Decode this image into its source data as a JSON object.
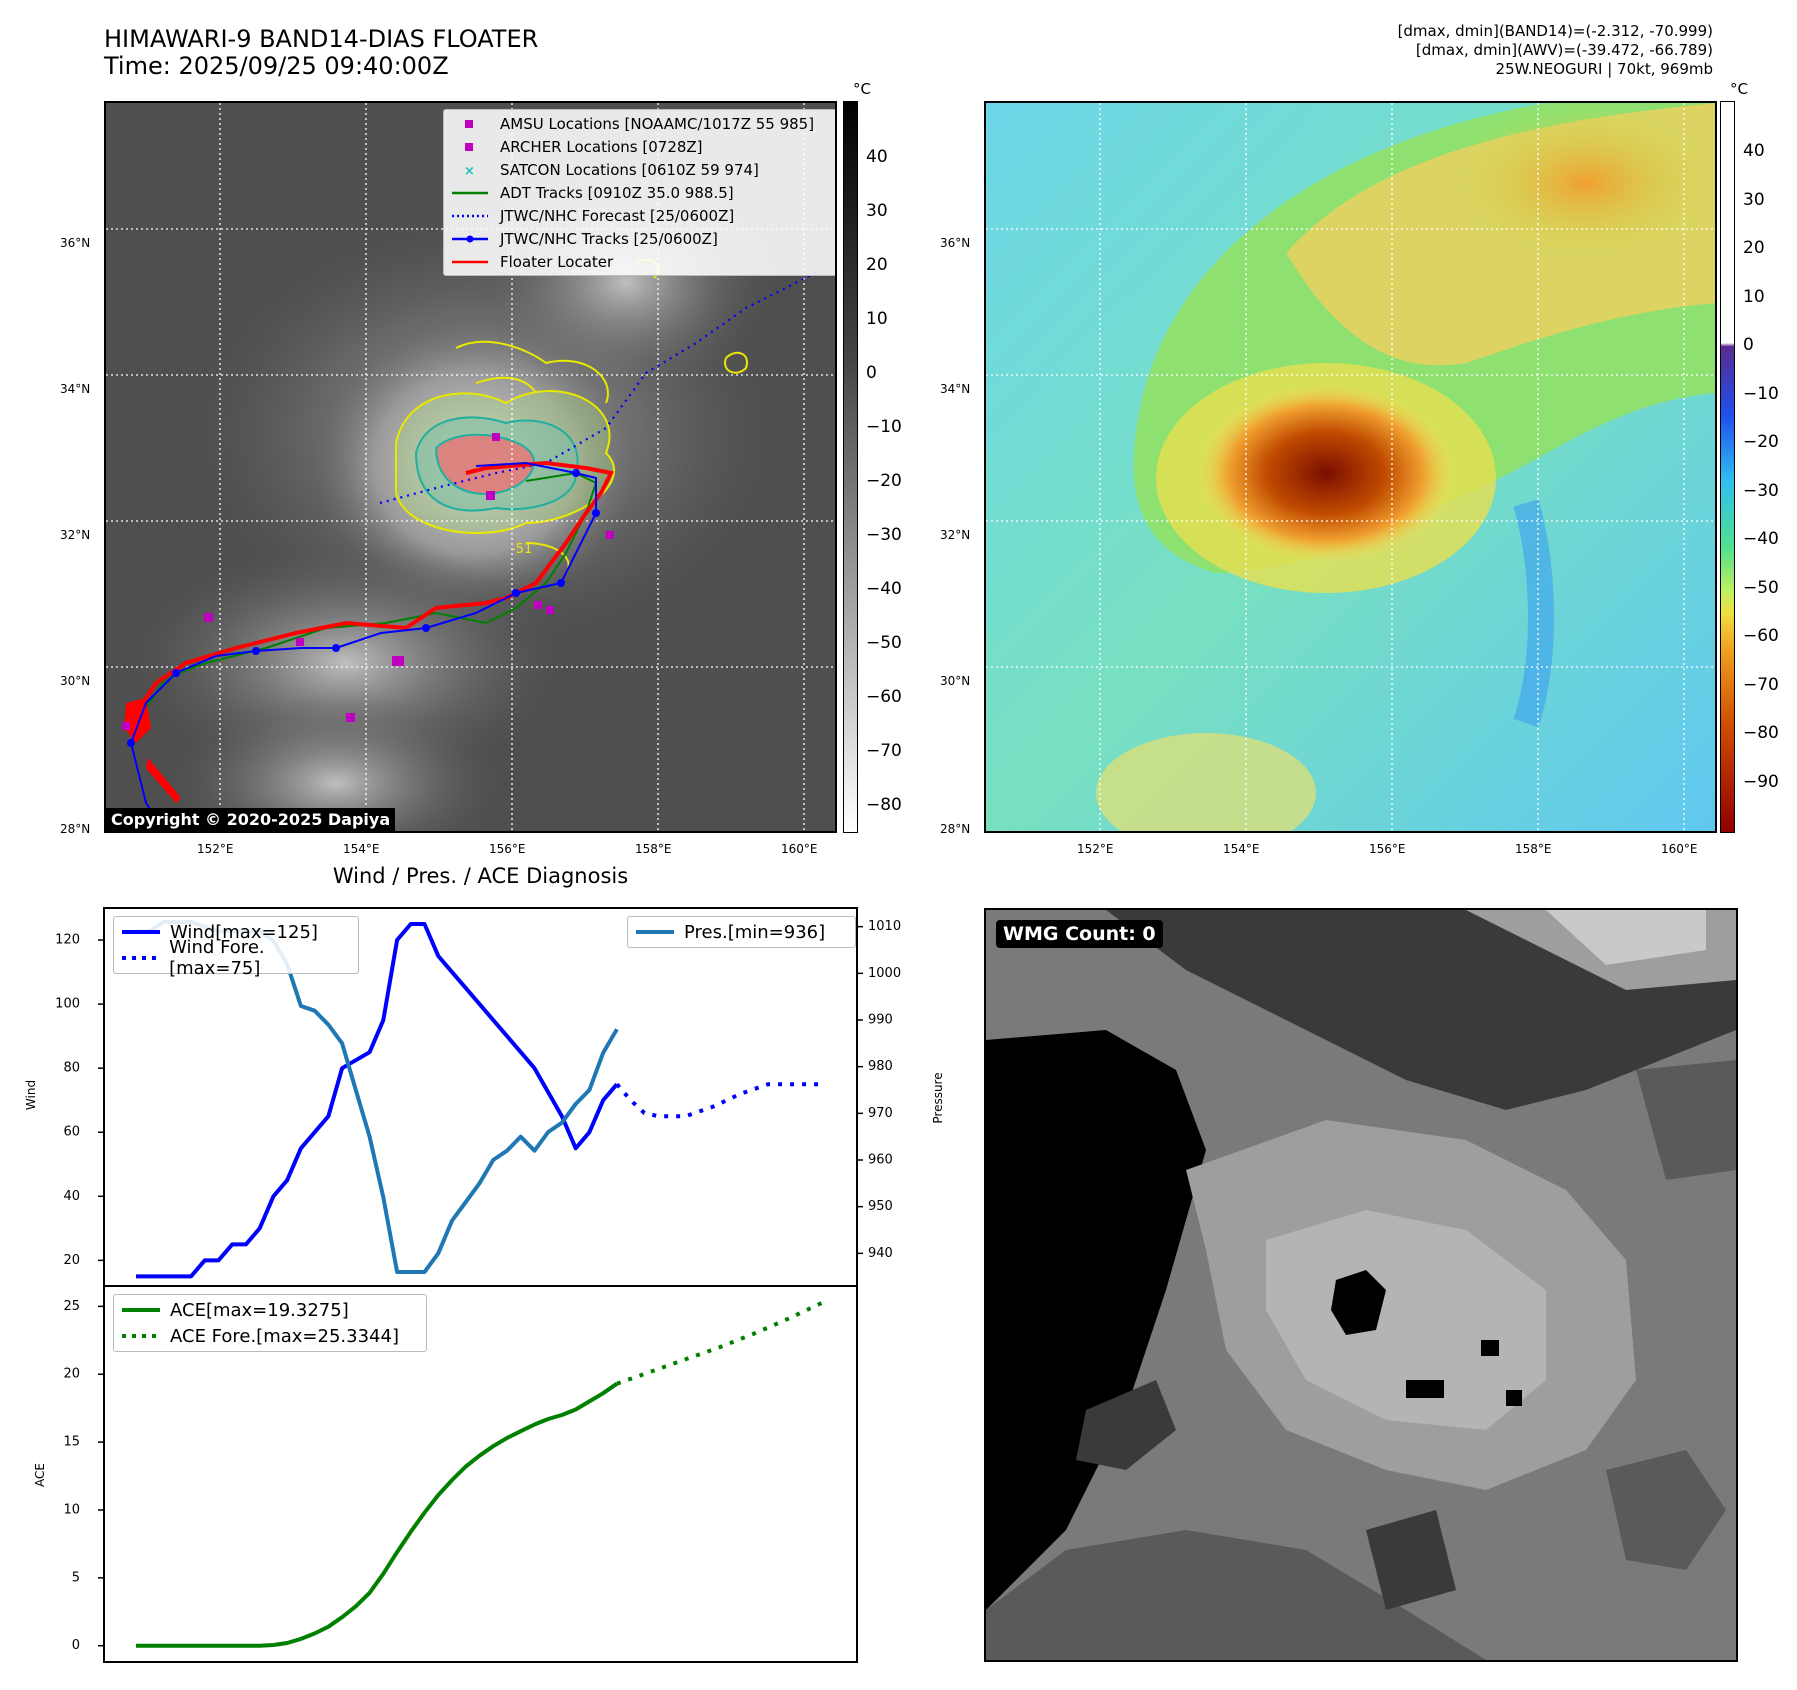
{
  "header": {
    "title_line1": "HIMAWARI-9 BAND14-DIAS FLOATER",
    "title_line2": "Time: 2025/09/25 09:40:00Z",
    "stats_line1": "[dmax, dmin](BAND14)=(-2.312, -70.999)",
    "stats_line2": "[dmax, dmin](AWV)=(-39.472, -66.789)",
    "stats_line3": "25W.NEOGURI | 70kt, 969mb"
  },
  "map": {
    "lat_labels": [
      "36°N",
      "34°N",
      "32°N",
      "30°N",
      "28°N"
    ],
    "lon_labels": [
      "152°E",
      "154°E",
      "156°E",
      "158°E",
      "160°E"
    ],
    "copyright": "Copyright © 2020-2025 Dapiya",
    "contour_label": "-51",
    "legend": [
      {
        "label": "AMSU Locations [NOAAMC/1017Z 55 985]",
        "color": "#c000c0",
        "marker": "square"
      },
      {
        "label": "ARCHER Locations [0728Z]",
        "color": "#c000c0",
        "marker": "square"
      },
      {
        "label": "SATCON Locations [0610Z 59 974]",
        "color": "#20c0c0",
        "marker": "x"
      },
      {
        "label": "ADT Tracks [0910Z 35.0 988.5]",
        "color": "#008000",
        "marker": "line"
      },
      {
        "label": "JTWC/NHC Forecast [25/0600Z]",
        "color": "#0000ff",
        "marker": "dotted"
      },
      {
        "label": "JTWC/NHC Tracks [25/0600Z]",
        "color": "#0000ff",
        "marker": "line-dot"
      },
      {
        "label": "Floater Locater",
        "color": "#ff0000",
        "marker": "line"
      }
    ]
  },
  "colorbar_ir": {
    "unit": "°C",
    "ticks": [
      "40",
      "30",
      "20",
      "10",
      "0",
      "−10",
      "−20",
      "−30",
      "−40",
      "−50",
      "−60",
      "−70",
      "−80"
    ]
  },
  "colorbar_wv": {
    "unit": "°C",
    "ticks": [
      "40",
      "30",
      "20",
      "10",
      "0",
      "−10",
      "−20",
      "−30",
      "−40",
      "−50",
      "−60",
      "−70",
      "−80",
      "−90"
    ]
  },
  "diagnosis": {
    "title": "Wind / Pres. / ACE Diagnosis",
    "ylabel_wind": "Wind",
    "ylabel_pressure": "Pressure",
    "ylabel_ace": "ACE",
    "wind_ticks": [
      "120",
      "100",
      "80",
      "60",
      "40",
      "20"
    ],
    "pressure_ticks": [
      "1010",
      "1000",
      "990",
      "980",
      "970",
      "960",
      "950",
      "940"
    ],
    "ace_ticks": [
      "25",
      "20",
      "15",
      "10",
      "5",
      "0"
    ],
    "legend_wind": "Wind[max=125]",
    "legend_wind_fore": "Wind Fore.[max=75]",
    "legend_pres": "Pres.[min=936]",
    "legend_ace": "ACE[max=19.3275]",
    "legend_ace_fore": "ACE Fore.[max=25.3344]"
  },
  "microwave": {
    "wmg_count": "WMG Count: 0"
  },
  "chart_data": [
    {
      "type": "line",
      "title": "Wind / Pres. / ACE Diagnosis",
      "ylabel": "Wind",
      "ylim": [
        12,
        130
      ],
      "x": [
        0,
        1,
        2,
        3,
        4,
        5,
        6,
        7,
        8,
        9,
        10,
        11,
        12,
        13,
        14,
        15,
        16,
        17,
        18,
        19,
        20,
        21,
        22,
        23,
        24,
        25,
        26,
        27,
        28,
        29,
        30,
        31,
        32,
        33,
        34,
        35,
        36,
        37,
        38,
        39,
        40,
        41,
        42,
        43,
        44,
        45,
        46,
        47,
        48,
        49,
        50,
        51,
        52,
        53,
        54,
        55,
        56,
        57,
        58,
        59,
        60,
        61,
        62,
        63,
        64,
        65,
        66,
        67,
        68,
        69,
        70,
        71,
        72,
        73,
        74,
        75,
        76,
        77,
        78,
        79,
        80,
        81,
        82,
        83,
        84,
        85,
        86,
        87,
        88,
        89,
        90,
        91,
        92,
        93,
        94,
        95,
        96,
        97,
        98,
        99,
        100
      ],
      "series": [
        {
          "name": "Wind[max=125]",
          "color": "#0000ff",
          "style": "solid",
          "x": [
            0,
            4,
            8,
            10,
            12,
            14,
            16,
            18,
            20,
            22,
            24,
            28,
            30,
            34,
            36,
            38,
            40,
            42,
            44,
            46,
            48,
            50,
            54,
            58,
            62,
            64,
            66,
            68,
            70
          ],
          "values": [
            15,
            15,
            15,
            20,
            20,
            25,
            25,
            30,
            40,
            45,
            55,
            65,
            80,
            85,
            95,
            120,
            125,
            125,
            115,
            110,
            105,
            100,
            90,
            80,
            65,
            55,
            60,
            70,
            75
          ]
        },
        {
          "name": "Wind Fore.[max=75]",
          "color": "#0000ff",
          "style": "dotted",
          "x": [
            70,
            72,
            74,
            76,
            78,
            80,
            84,
            88,
            92,
            96,
            100
          ],
          "values": [
            75,
            70,
            66,
            65,
            65,
            65,
            68,
            72,
            75,
            75,
            75
          ]
        },
        {
          "name": "Pres.[min=936]",
          "color": "#1f77b4",
          "style": "solid",
          "axis": "right",
          "x": [
            0,
            2,
            4,
            6,
            8,
            10,
            12,
            14,
            16,
            18,
            20,
            22,
            24,
            26,
            28,
            30,
            32,
            34,
            36,
            38,
            40,
            42,
            44,
            46,
            48,
            50,
            52,
            54,
            56,
            58,
            60,
            62,
            64,
            66,
            68,
            70
          ],
          "values": [
            1009,
            1009,
            1011,
            1011,
            1011,
            1010,
            1009,
            1009,
            1009,
            1009,
            1007,
            1002,
            993,
            992,
            989,
            985,
            975,
            965,
            952,
            936,
            936,
            936,
            940,
            947,
            951,
            955,
            960,
            962,
            965,
            962,
            966,
            968,
            972,
            975,
            983,
            988
          ]
        }
      ],
      "y2label": "Pressure",
      "y2lim": [
        933,
        1014
      ]
    },
    {
      "type": "line",
      "ylabel": "ACE",
      "ylim": [
        -1.2,
        26.5
      ],
      "series": [
        {
          "name": "ACE[max=19.3275]",
          "color": "#008000",
          "style": "solid",
          "x": [
            0,
            10,
            18,
            20,
            22,
            24,
            26,
            28,
            30,
            32,
            34,
            36,
            38,
            40,
            42,
            44,
            46,
            48,
            50,
            52,
            54,
            56,
            58,
            60,
            62,
            64,
            66,
            68,
            70
          ],
          "values": [
            0,
            0,
            0,
            0.05,
            0.2,
            0.5,
            0.9,
            1.4,
            2.1,
            2.9,
            3.9,
            5.3,
            6.9,
            8.4,
            9.8,
            11.1,
            12.2,
            13.2,
            14,
            14.7,
            15.3,
            15.8,
            16.3,
            16.7,
            17,
            17.4,
            18,
            18.6,
            19.3
          ]
        },
        {
          "name": "ACE Fore.[max=25.3344]",
          "color": "#008000",
          "style": "dotted",
          "x": [
            70,
            75,
            80,
            85,
            90,
            95,
            100
          ],
          "values": [
            19.3,
            20.2,
            21.1,
            22.0,
            23.0,
            24.1,
            25.3
          ]
        }
      ]
    }
  ]
}
